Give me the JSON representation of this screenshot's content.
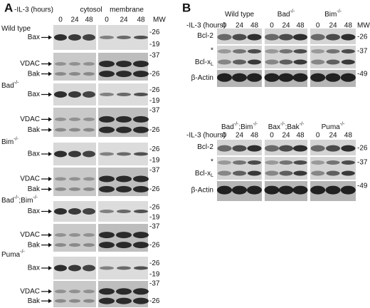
{
  "panel_a": {
    "label": "A",
    "treatment": "-IL-3 (hours)",
    "fractions": [
      "cytosol",
      "membrane"
    ],
    "timepoints": [
      "0",
      "24",
      "48"
    ],
    "mw_header": "MW",
    "groups": [
      {
        "genotype": [
          {
            "text": "Wild type"
          }
        ],
        "blots": [
          {
            "proteins": [
              "Bax"
            ],
            "mw": [
              "-26",
              "-19"
            ]
          },
          {
            "proteins": [
              "VDAC",
              "Bak"
            ],
            "mw": [
              "-37",
              "-26"
            ]
          }
        ]
      },
      {
        "genotype": [
          {
            "text": "Bad",
            "sup": "-/-"
          }
        ],
        "blots": [
          {
            "proteins": [
              "Bax"
            ],
            "mw": [
              "-26",
              "-19"
            ]
          },
          {
            "proteins": [
              "VDAC",
              "Bak"
            ],
            "mw": [
              "-37",
              "-26"
            ]
          }
        ]
      },
      {
        "genotype": [
          {
            "text": "Bim",
            "sup": "-/-"
          }
        ],
        "blots": [
          {
            "proteins": [
              "Bax"
            ],
            "mw": [
              "-26",
              "-19"
            ]
          },
          {
            "proteins": [
              "VDAC",
              "Bak"
            ],
            "mw": [
              "-37",
              "-26"
            ]
          }
        ]
      },
      {
        "genotype": [
          {
            "text": "Bad",
            "sup": "-/-"
          },
          {
            "text": ";Bim",
            "sup": "-/-"
          }
        ],
        "blots": [
          {
            "proteins": [
              "Bax"
            ],
            "mw": [
              "-26",
              "-19"
            ]
          },
          {
            "proteins": [
              "VDAC",
              "Bak"
            ],
            "mw": [
              "-37",
              "-26"
            ]
          }
        ]
      },
      {
        "genotype": [
          {
            "text": "Puma",
            "sup": "-/-"
          }
        ],
        "blots": [
          {
            "proteins": [
              "Bax"
            ],
            "mw": [
              "-26",
              "-19"
            ]
          },
          {
            "proteins": [
              "VDAC",
              "Bak"
            ],
            "mw": [
              "-37",
              "-26"
            ]
          }
        ]
      }
    ]
  },
  "panel_b": {
    "label": "B",
    "sections": [
      {
        "treatment": "-IL-3 (hours)",
        "mw_header": "MW",
        "timepoints": [
          "0",
          "24",
          "48"
        ],
        "genotypes": [
          [
            {
              "text": "Wild type"
            }
          ],
          [
            {
              "text": "Bad",
              "sup": "-/-"
            }
          ],
          [
            {
              "text": "Bim",
              "sup": "-/-"
            }
          ]
        ],
        "rows": [
          {
            "label": [
              {
                "text": "Bcl-2"
              }
            ],
            "mw": "-26"
          },
          {
            "marker": "*",
            "label": [
              {
                "text": "Bcl-x",
                "sub": "L"
              }
            ],
            "mw": "-37"
          },
          {
            "label": [
              {
                "text": "β-Actin"
              }
            ],
            "mw": "-49"
          }
        ]
      },
      {
        "treatment": "-IL-3 (hours)",
        "timepoints": [
          "0",
          "24",
          "48"
        ],
        "genotypes": [
          [
            {
              "text": "Bad",
              "sup": "-/-"
            },
            {
              "text": ";Bim",
              "sup": "-/-"
            }
          ],
          [
            {
              "text": "Bax",
              "sup": "-/-"
            },
            {
              "text": ";Bak",
              "sup": "-/-"
            }
          ],
          [
            {
              "text": "Puma",
              "sup": "-/-"
            }
          ]
        ],
        "rows": [
          {
            "label": [
              {
                "text": "Bcl-2"
              }
            ],
            "mw": "-26"
          },
          {
            "marker": "*",
            "label": [
              {
                "text": "Bcl-x",
                "sub": "L"
              }
            ],
            "mw": "-37"
          },
          {
            "label": [
              {
                "text": "β-Actin"
              }
            ],
            "mw": "-49"
          }
        ]
      }
    ]
  }
}
